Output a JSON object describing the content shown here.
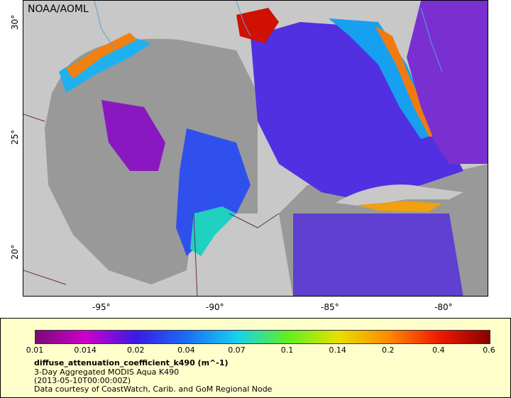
{
  "map": {
    "credit": "NOAA/AOML",
    "lat_ticks": [
      "30°",
      "25°",
      "20°"
    ],
    "lon_ticks": [
      "-95°",
      "-90°",
      "-85°",
      "-80°"
    ],
    "colors": {
      "land": "#999999",
      "ocean_nodata": "#c8c8c8",
      "border": "#6a2a55",
      "river": "#5aa0d8"
    }
  },
  "legend": {
    "ticks": [
      "0.01",
      "0.014",
      "0.02",
      "0.04",
      "0.07",
      "0.1",
      "0.14",
      "0.2",
      "0.4",
      "0.6"
    ],
    "variable": "diffuse_attenuation_coefficient_k490 (m^-1)",
    "product": "3-Day Aggregated MODIS Aqua K490",
    "date": "(2013-05-10T00:00:00Z)",
    "courtesy": "Data courtesy of CoastWatch, Carib. and GoM Regional Node",
    "colormap": [
      "#7a0a7a",
      "#cc00cc",
      "#3a1ae6",
      "#1a6ef5",
      "#18d0f0",
      "#60f020",
      "#e8e000",
      "#ff8a00",
      "#ee1a00",
      "#8a0000"
    ]
  }
}
